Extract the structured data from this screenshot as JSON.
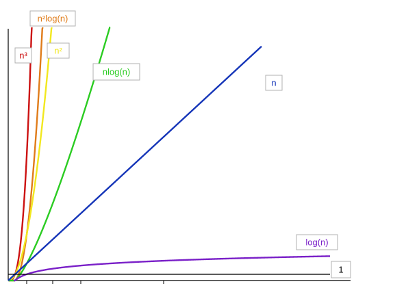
{
  "chart_data": {
    "type": "line",
    "title": "",
    "xlabel": "",
    "ylabel": "",
    "grid": false,
    "x": [
      0,
      1,
      2,
      3,
      4,
      5,
      6,
      7,
      8,
      9,
      10,
      11,
      12,
      13,
      14,
      15,
      16,
      17,
      18,
      19,
      20,
      21,
      22,
      23,
      24,
      25,
      26,
      27,
      28,
      29,
      30,
      31,
      32,
      33,
      34,
      35,
      36,
      37,
      38,
      39,
      40,
      41,
      42,
      43,
      44,
      45,
      46,
      47,
      48,
      49,
      50
    ],
    "xlim": [
      0,
      50
    ],
    "ylim": [
      0,
      40
    ],
    "series": [
      {
        "name": "n³",
        "formula": "n^3",
        "color": "#cc1111"
      },
      {
        "name": "n²log(n)",
        "formula": "n^2*log(n)",
        "color": "#e07c1a"
      },
      {
        "name": "n²",
        "formula": "n^2",
        "color": "#f2e81f"
      },
      {
        "name": "nlog(n)",
        "formula": "n*log(n)",
        "color": "#2bcc22"
      },
      {
        "name": "n",
        "formula": "n",
        "color": "#1535b8"
      },
      {
        "name": "log(n)",
        "formula": "log(n)",
        "color": "#7a20c8"
      },
      {
        "name": "1",
        "formula": "1",
        "color": "#000000"
      }
    ],
    "colors": {
      "n3": "#cc1111",
      "n2logn": "#e07c1a",
      "n2": "#f2e81f",
      "nlogn": "#2bcc22",
      "n": "#1535b8",
      "logn": "#7a20c8",
      "one": "#000000",
      "axis": "#000000",
      "label_border": "#b0b0b0"
    }
  }
}
